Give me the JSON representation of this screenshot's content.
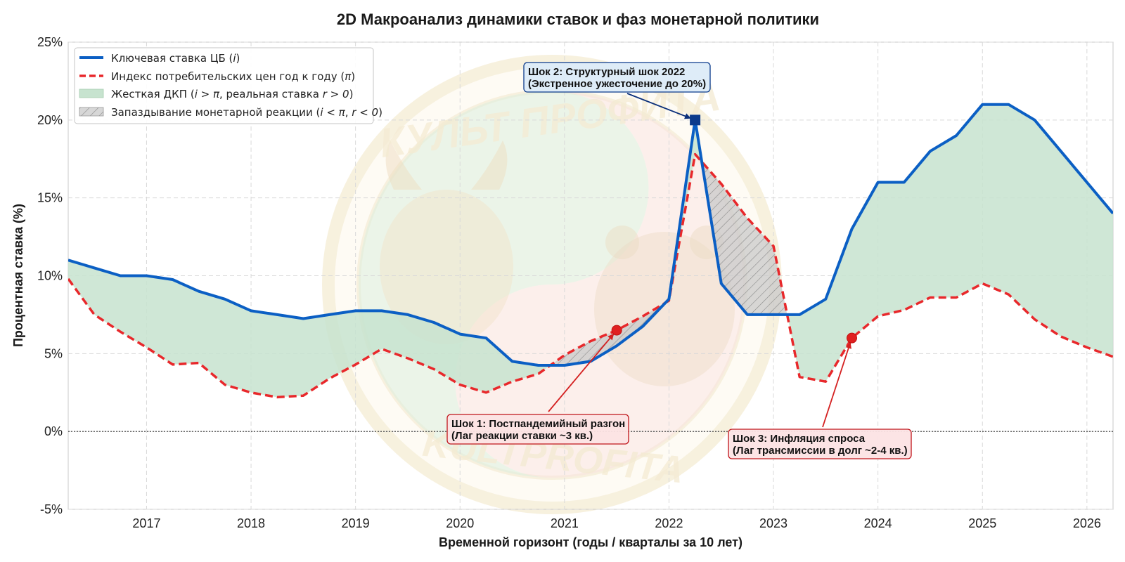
{
  "colors": {
    "rate": "#0b5fc4",
    "cpi": "#e8282b",
    "tight_fill": "#c7e3cf",
    "lag_fill": "#c9c9c9",
    "shock_blue_bg": "#dcebf8",
    "shock_red_bg": "#fce3e4",
    "grid": "#d9d9d9"
  },
  "chart_data": {
    "type": "line",
    "title": "2D Макроанализ динамики ставок и фаз монетарной политики",
    "xlabel": "Временной горизонт (годы / кварталы за 10 лет)",
    "ylabel": "Процентная ставка (%)",
    "xlim": [
      2016.25,
      2026.25
    ],
    "ylim": [
      -5,
      25
    ],
    "x_ticks": [
      2017,
      2018,
      2019,
      2020,
      2021,
      2022,
      2023,
      2024,
      2025,
      2026
    ],
    "x_tick_labels": [
      "2017",
      "2018",
      "2019",
      "2020",
      "2021",
      "2022",
      "2023",
      "2024",
      "2025",
      "2026"
    ],
    "y_ticks": [
      -5,
      0,
      5,
      10,
      15,
      20,
      25
    ],
    "y_tick_labels": [
      "-5%",
      "0%",
      "5%",
      "10%",
      "15%",
      "20%",
      "25%"
    ],
    "grid": true,
    "legend_position": "top-left",
    "zero_line": true,
    "x": [
      2016.25,
      2016.5,
      2016.75,
      2017.0,
      2017.25,
      2017.5,
      2017.75,
      2018.0,
      2018.25,
      2018.5,
      2018.75,
      2019.0,
      2019.25,
      2019.5,
      2019.75,
      2020.0,
      2020.25,
      2020.5,
      2020.75,
      2021.0,
      2021.25,
      2021.5,
      2021.75,
      2022.0,
      2022.25,
      2022.5,
      2022.75,
      2023.0,
      2023.25,
      2023.5,
      2023.75,
      2024.0,
      2024.25,
      2024.5,
      2024.75,
      2025.0,
      2025.25,
      2025.5,
      2025.75,
      2026.0,
      2026.25
    ],
    "series": [
      {
        "name": "Ключевая ставка ЦБ (i)",
        "style": "solid",
        "values": [
          11.0,
          10.5,
          10.0,
          10.0,
          9.75,
          9.0,
          8.5,
          7.75,
          7.5,
          7.25,
          7.5,
          7.75,
          7.75,
          7.5,
          7.0,
          6.25,
          6.0,
          4.5,
          4.25,
          4.25,
          4.5,
          5.5,
          6.75,
          8.5,
          20.0,
          9.5,
          7.5,
          7.5,
          7.5,
          8.5,
          13.0,
          16.0,
          16.0,
          18.0,
          19.0,
          21.0,
          21.0,
          20.0,
          18.0,
          16.0,
          14.0
        ]
      },
      {
        "name": "Индекс потребительских цен год к году (π)",
        "style": "dashed",
        "values": [
          9.8,
          7.5,
          6.4,
          5.4,
          4.3,
          4.4,
          3.0,
          2.5,
          2.2,
          2.3,
          3.4,
          4.3,
          5.3,
          4.7,
          4.0,
          3.0,
          2.5,
          3.2,
          3.7,
          4.9,
          5.8,
          6.5,
          7.4,
          8.4,
          17.8,
          15.9,
          13.7,
          11.9,
          3.5,
          3.2,
          6.0,
          7.4,
          7.8,
          8.6,
          8.6,
          9.5,
          8.8,
          7.2,
          6.1,
          5.4,
          4.8
        ]
      }
    ],
    "legend": [
      {
        "label_main": "Ключевая ставка ЦБ (",
        "label_sym": "i",
        "label_tail": ")",
        "kind": "line-solid"
      },
      {
        "label_main": "Индекс потребительских цен год к году (",
        "label_sym": "π",
        "label_tail": ")",
        "kind": "line-dashed"
      },
      {
        "label_main": "Жесткая ДКП (",
        "label_sym": "i > π",
        "label_tail": ", реальная ставка ",
        "label_sym2": "r > 0",
        "label_tail2": ")",
        "kind": "fill-green"
      },
      {
        "label_main": "Запаздывание монетарной реакции (",
        "label_sym": "i < π",
        "label_tail": ", ",
        "label_sym2": "r < 0",
        "label_tail2": ")",
        "kind": "fill-hatch"
      }
    ],
    "annotations": [
      {
        "id": "shock1",
        "line1": "Шок 1: Постпандемийный разгон",
        "line2": "(Лаг реакции ставки ~3 кв.)",
        "point_x": 2021.5,
        "point_y": 6.5,
        "marker": "circle",
        "color": "cpi",
        "box": "red"
      },
      {
        "id": "shock2",
        "line1": "Шок 2: Структурный шок 2022",
        "line2": "(Экстренное ужесточение до 20%)",
        "point_x": 2022.25,
        "point_y": 20.0,
        "marker": "square",
        "color": "rate",
        "box": "blue"
      },
      {
        "id": "shock3",
        "line1": "Шок 3: Инфляция спроса",
        "line2": "(Лаг трансмиссии в долг ~2-4 кв.)",
        "point_x": 2023.75,
        "point_y": 6.0,
        "marker": "circle",
        "color": "cpi",
        "box": "red"
      }
    ]
  },
  "watermark": {
    "top_text": "КУЛЬТ ПРОФИТА",
    "bottom_text": "KULTPROFITA"
  }
}
